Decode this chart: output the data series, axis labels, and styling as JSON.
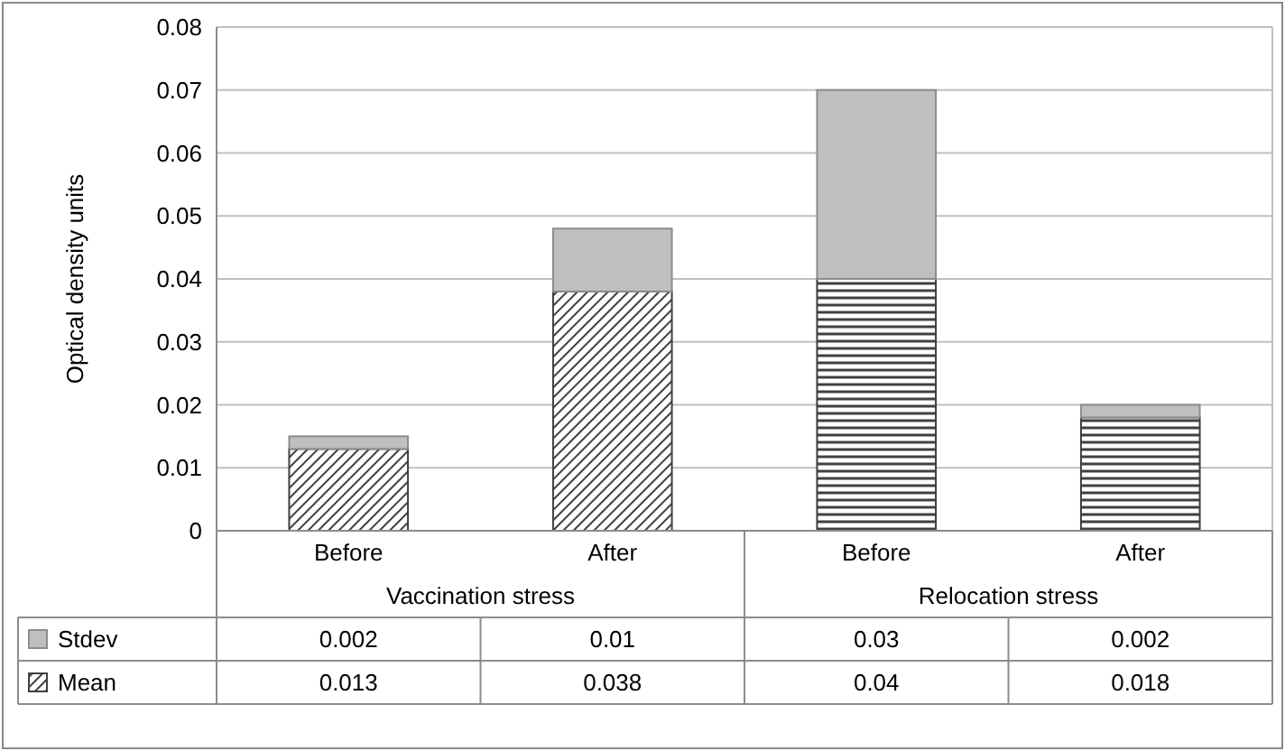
{
  "chart_data": {
    "type": "bar",
    "stacked": true,
    "ylabel": "Optical density units",
    "categories": [
      "Before",
      "After",
      "Before",
      "After"
    ],
    "annotations": [
      "Vaccination stress",
      "Relocation stress"
    ],
    "series": [
      {
        "name": "Mean",
        "color": "#404040",
        "values": [
          0.013,
          0.038,
          0.04,
          0.018
        ]
      },
      {
        "name": "Stdev",
        "color": "#bfbfbf",
        "values": [
          0.002,
          0.01,
          0.03,
          0.002
        ]
      }
    ],
    "ylim": [
      0,
      0.08
    ],
    "yticks": [
      0,
      0.01,
      0.02,
      0.03,
      0.04,
      0.05,
      0.06,
      0.07,
      0.08
    ],
    "grid": true,
    "data_labels": true,
    "legend": "bottom"
  }
}
